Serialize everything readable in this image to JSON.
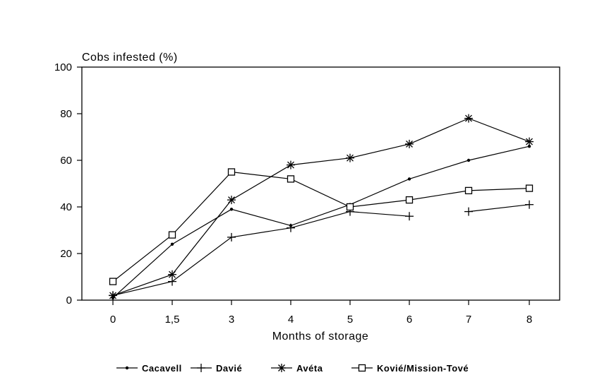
{
  "chart_data": {
    "type": "line",
    "ylabel": "Cobs infested (%)",
    "xlabel": "Months of storage",
    "categories": [
      "0",
      "1,5",
      "3",
      "4",
      "5",
      "6",
      "7",
      "8"
    ],
    "ylim": [
      0,
      100
    ],
    "yticks": [
      0,
      20,
      40,
      60,
      80,
      100
    ],
    "grid": false,
    "legend_position": "bottom",
    "series": [
      {
        "name": "Cacavell",
        "marker": "dot",
        "values": [
          1,
          24,
          39,
          32,
          41,
          52,
          60,
          66
        ]
      },
      {
        "name": "Davié",
        "marker": "plus",
        "values": [
          2,
          8,
          27,
          31,
          38,
          36,
          38,
          41
        ],
        "gaps_after": [
          5
        ]
      },
      {
        "name": "Avéta",
        "marker": "asterisk",
        "values": [
          2,
          11,
          43,
          58,
          61,
          67,
          78,
          68
        ]
      },
      {
        "name": "Kovié/Mission-Tové",
        "marker": "square",
        "values": [
          8,
          28,
          55,
          52,
          40,
          43,
          47,
          48
        ]
      }
    ]
  }
}
